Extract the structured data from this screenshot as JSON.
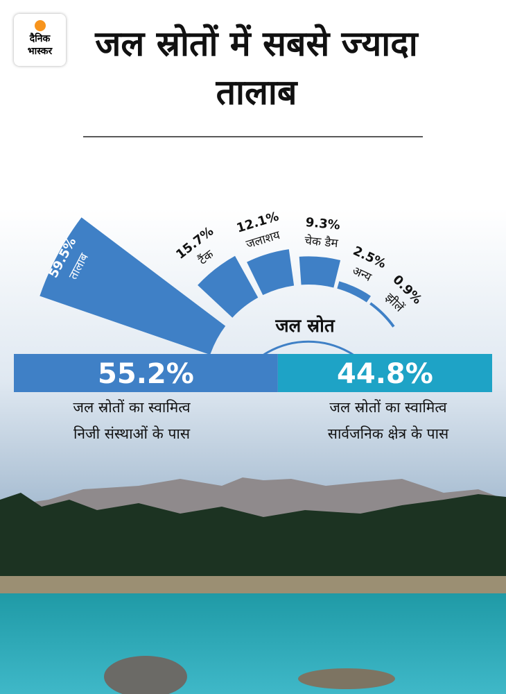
{
  "logo": {
    "line1": "दैनिक",
    "line2": "भास्कर"
  },
  "title": "जल स्रोतों में सबसे ज्यादा तालाब",
  "chart_data": [
    {
      "type": "radial-bar",
      "title": "जल स्रोत",
      "categories": [
        "तालाब",
        "टैंक",
        "जलाशय",
        "चेक डैम",
        "अन्य",
        "झीलें"
      ],
      "values": [
        59.5,
        15.7,
        12.1,
        9.3,
        2.5,
        0.9
      ],
      "value_labels": [
        "59.5%",
        "15.7%",
        "12.1%",
        "9.3%",
        "2.5%",
        "0.9%"
      ],
      "color": "#3f80c6"
    },
    {
      "type": "split-bar",
      "categories": [
        "जल स्रोतों का स्वामित्व\nनिजी संस्थाओं के पास",
        "जल स्रोतों का स्वामित्व\nसार्वजनिक क्षेत्र के पास"
      ],
      "values": [
        55.2,
        44.8
      ],
      "value_labels": [
        "55.2%",
        "44.8%"
      ],
      "colors": [
        "#3f80c6",
        "#1ea3c6"
      ]
    }
  ]
}
